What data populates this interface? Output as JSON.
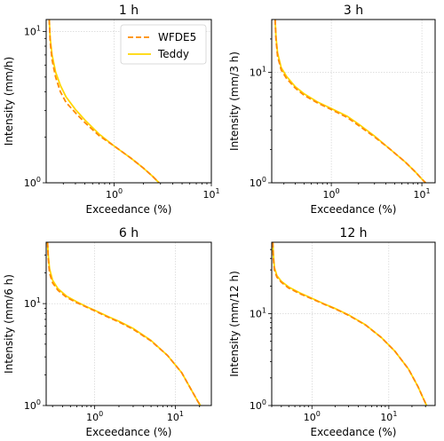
{
  "chart_data": [
    {
      "type": "line",
      "title": "1 h",
      "xlabel": "Exceedance (%)",
      "ylabel": "Intensity (mm/h)",
      "xscale": "log",
      "yscale": "log",
      "xlim": [
        0.2,
        10
      ],
      "ylim": [
        1,
        12
      ],
      "xticks": [
        1,
        10
      ],
      "xtick_labels": [
        "10^0",
        "10^1"
      ],
      "yticks": [
        1,
        10
      ],
      "ytick_labels": [
        "10^0",
        "10^1"
      ],
      "grid": true,
      "legend": "top-right",
      "series": [
        {
          "name": "WFDE5",
          "style": "dashed",
          "color": "#ff8c00",
          "x": [
            0.215,
            0.22,
            0.23,
            0.25,
            0.28,
            0.32,
            0.4,
            0.5,
            0.7,
            1.0,
            1.5,
            2.0,
            2.5,
            2.9
          ],
          "y": [
            12,
            8.5,
            6.5,
            5.0,
            4.0,
            3.4,
            2.9,
            2.5,
            2.05,
            1.75,
            1.45,
            1.25,
            1.1,
            1.0
          ]
        },
        {
          "name": "Teddy",
          "style": "solid",
          "color": "#ffd700",
          "x": [
            0.215,
            0.22,
            0.23,
            0.25,
            0.28,
            0.32,
            0.4,
            0.5,
            0.7,
            1.0,
            1.5,
            2.0,
            2.5,
            2.9
          ],
          "y": [
            12,
            9.0,
            7.0,
            5.4,
            4.4,
            3.7,
            3.05,
            2.6,
            2.1,
            1.75,
            1.45,
            1.25,
            1.1,
            1.0
          ]
        }
      ]
    },
    {
      "type": "line",
      "title": "3 h",
      "xlabel": "Exceedance (%)",
      "ylabel": "Intensity (mm/3 h)",
      "xscale": "log",
      "yscale": "log",
      "xlim": [
        0.22,
        14
      ],
      "ylim": [
        1,
        30
      ],
      "xticks": [
        1,
        10
      ],
      "xtick_labels": [
        "10^0",
        "10^1"
      ],
      "yticks": [
        1,
        10
      ],
      "ytick_labels": [
        "10^0",
        "10^1"
      ],
      "grid": true,
      "series": [
        {
          "name": "WFDE5",
          "style": "dashed",
          "color": "#ff8c00",
          "x": [
            0.24,
            0.245,
            0.255,
            0.28,
            0.32,
            0.4,
            0.5,
            0.7,
            1.0,
            1.5,
            2.0,
            3.0,
            4.5,
            6.5,
            8.5,
            10.0,
            11.0
          ],
          "y": [
            30,
            20,
            14,
            10.5,
            8.8,
            7.2,
            6.2,
            5.3,
            4.6,
            3.9,
            3.3,
            2.6,
            2.0,
            1.55,
            1.25,
            1.08,
            1.0
          ]
        },
        {
          "name": "Teddy",
          "style": "solid",
          "color": "#ffd700",
          "x": [
            0.24,
            0.245,
            0.255,
            0.28,
            0.32,
            0.4,
            0.5,
            0.7,
            1.0,
            1.5,
            2.0,
            3.0,
            4.5,
            6.5,
            8.5,
            10.0,
            11.0
          ],
          "y": [
            30,
            21,
            15,
            11,
            9.2,
            7.4,
            6.4,
            5.4,
            4.7,
            4.0,
            3.4,
            2.65,
            2.0,
            1.55,
            1.25,
            1.08,
            1.0
          ]
        }
      ]
    },
    {
      "type": "line",
      "title": "6 h",
      "xlabel": "Exceedance (%)",
      "ylabel": "Intensity (mm/6 h)",
      "xscale": "log",
      "yscale": "log",
      "xlim": [
        0.25,
        28
      ],
      "ylim": [
        1,
        40
      ],
      "xticks": [
        1,
        10
      ],
      "xtick_labels": [
        "10^0",
        "10^1"
      ],
      "yticks": [
        1,
        10
      ],
      "ytick_labels": [
        "10^0",
        "10^1"
      ],
      "grid": true,
      "series": [
        {
          "name": "WFDE5",
          "style": "dashed",
          "color": "#ff8c00",
          "x": [
            0.26,
            0.265,
            0.275,
            0.3,
            0.35,
            0.45,
            0.6,
            0.8,
            1.0,
            1.5,
            2.0,
            3.0,
            5.0,
            8.0,
            12.0,
            16.0,
            19.0,
            20.5
          ],
          "y": [
            40,
            28,
            20,
            16,
            13.5,
            11.5,
            10.2,
            9.2,
            8.5,
            7.3,
            6.6,
            5.6,
            4.3,
            3.1,
            2.1,
            1.4,
            1.1,
            1.0
          ]
        },
        {
          "name": "Teddy",
          "style": "solid",
          "color": "#ffd700",
          "x": [
            0.26,
            0.265,
            0.275,
            0.3,
            0.35,
            0.45,
            0.6,
            0.8,
            1.0,
            1.5,
            2.0,
            3.0,
            5.0,
            8.0,
            12.0,
            16.0,
            19.0,
            20.5
          ],
          "y": [
            40,
            30,
            22,
            17,
            14,
            11.8,
            10.4,
            9.3,
            8.6,
            7.4,
            6.7,
            5.7,
            4.35,
            3.1,
            2.1,
            1.4,
            1.1,
            1.0
          ]
        }
      ]
    },
    {
      "type": "line",
      "title": "12 h",
      "xlabel": "Exceedance (%)",
      "ylabel": "Intensity (mm/12 h)",
      "xscale": "log",
      "yscale": "log",
      "xlim": [
        0.3,
        40
      ],
      "ylim": [
        1,
        60
      ],
      "xticks": [
        1,
        10
      ],
      "xtick_labels": [
        "10^0",
        "10^1"
      ],
      "yticks": [
        1,
        10
      ],
      "ytick_labels": [
        "10^0",
        "10^1"
      ],
      "grid": true,
      "series": [
        {
          "name": "WFDE5",
          "style": "dashed",
          "color": "#ff8c00",
          "x": [
            0.31,
            0.315,
            0.325,
            0.35,
            0.4,
            0.5,
            0.7,
            1.0,
            1.5,
            2.0,
            3.0,
            5.0,
            8.0,
            12.0,
            18.0,
            24.0,
            28.0,
            31.0
          ],
          "y": [
            60,
            40,
            30,
            25,
            22,
            19,
            16.5,
            14.5,
            12.5,
            11.3,
            9.6,
            7.5,
            5.5,
            3.9,
            2.5,
            1.6,
            1.2,
            1.0
          ]
        },
        {
          "name": "Teddy",
          "style": "solid",
          "color": "#ffd700",
          "x": [
            0.31,
            0.315,
            0.325,
            0.35,
            0.4,
            0.5,
            0.7,
            1.0,
            1.5,
            2.0,
            3.0,
            5.0,
            8.0,
            12.0,
            18.0,
            24.0,
            28.0,
            31.0
          ],
          "y": [
            60,
            44,
            32,
            26,
            22.5,
            19.5,
            16.8,
            14.7,
            12.6,
            11.4,
            9.7,
            7.55,
            5.5,
            3.9,
            2.5,
            1.6,
            1.2,
            1.0
          ]
        }
      ]
    }
  ]
}
